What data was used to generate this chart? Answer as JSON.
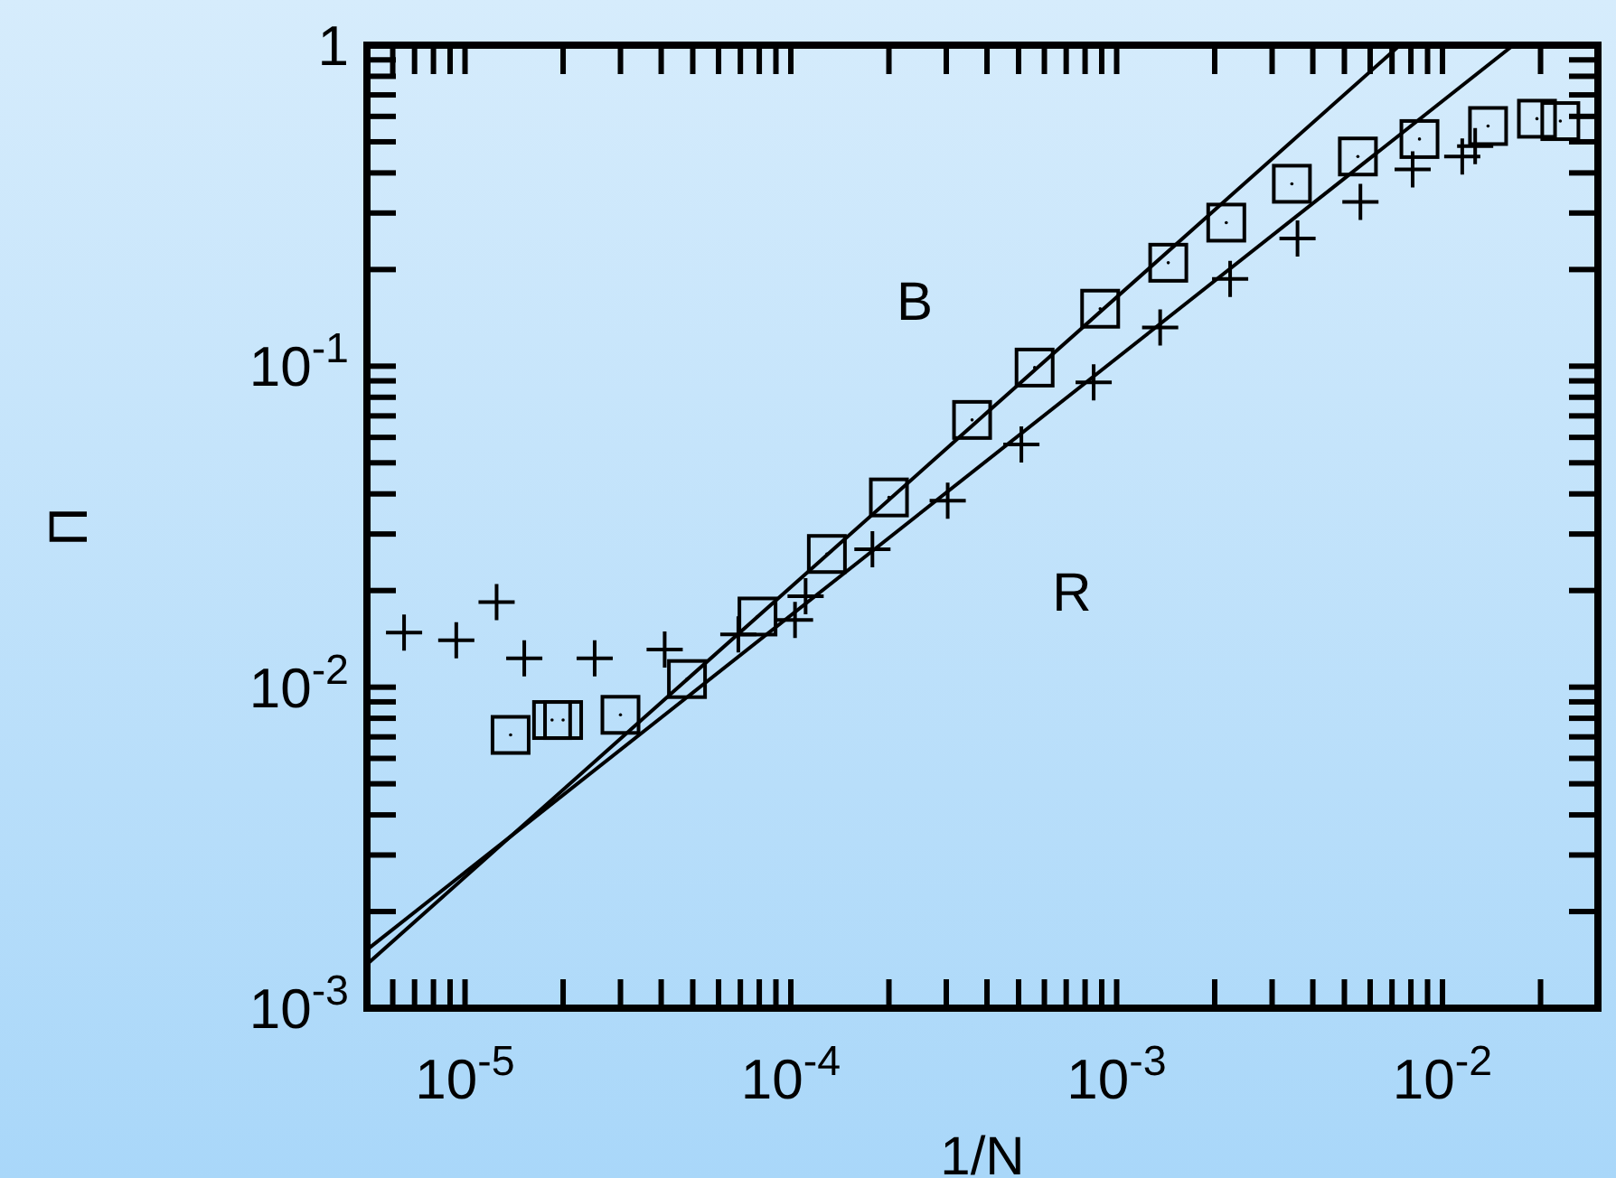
{
  "chart_data": {
    "type": "scatter",
    "xlabel": "1/N",
    "ylabel": "Π",
    "log": "xy",
    "grid": false,
    "xlim": [
      5e-06,
      0.03
    ],
    "ylim": [
      0.001,
      1
    ],
    "xticks": [
      {
        "value": 6e-06,
        "label": null
      },
      {
        "value": 7e-06,
        "label": null
      },
      {
        "value": 8e-06,
        "label": null
      },
      {
        "value": 9e-06,
        "label": null
      },
      {
        "value": 1e-05,
        "label": "10$^{-5}$"
      },
      {
        "value": 2e-05,
        "label": null
      },
      {
        "value": 3e-05,
        "label": null
      },
      {
        "value": 4e-05,
        "label": null
      },
      {
        "value": 5e-05,
        "label": null
      },
      {
        "value": 6e-05,
        "label": null
      },
      {
        "value": 7e-05,
        "label": null
      },
      {
        "value": 8e-05,
        "label": null
      },
      {
        "value": 9e-05,
        "label": null
      },
      {
        "value": 0.0001,
        "label": "10$^{-4}$"
      },
      {
        "value": 0.0002,
        "label": null
      },
      {
        "value": 0.0003,
        "label": null
      },
      {
        "value": 0.0004,
        "label": null
      },
      {
        "value": 0.0005,
        "label": null
      },
      {
        "value": 0.0006,
        "label": null
      },
      {
        "value": 0.0007,
        "label": null
      },
      {
        "value": 0.0008,
        "label": null
      },
      {
        "value": 0.0009,
        "label": null
      },
      {
        "value": 0.001,
        "label": "10$^{-3}$"
      },
      {
        "value": 0.002,
        "label": null
      },
      {
        "value": 0.003,
        "label": null
      },
      {
        "value": 0.004,
        "label": null
      },
      {
        "value": 0.005,
        "label": null
      },
      {
        "value": 0.006,
        "label": null
      },
      {
        "value": 0.007,
        "label": null
      },
      {
        "value": 0.008,
        "label": null
      },
      {
        "value": 0.009,
        "label": null
      },
      {
        "value": 0.01,
        "label": "10$^{-2}$"
      },
      {
        "value": 0.02,
        "label": null
      }
    ],
    "yticks": [
      {
        "value": 0.001,
        "label": "10$^{-3}$"
      },
      {
        "value": 0.002,
        "label": null
      },
      {
        "value": 0.003,
        "label": null
      },
      {
        "value": 0.004,
        "label": null
      },
      {
        "value": 0.005,
        "label": null
      },
      {
        "value": 0.006,
        "label": null
      },
      {
        "value": 0.007,
        "label": null
      },
      {
        "value": 0.008,
        "label": null
      },
      {
        "value": 0.009,
        "label": null
      },
      {
        "value": 0.01,
        "label": "10$^{-2}$"
      },
      {
        "value": 0.02,
        "label": null
      },
      {
        "value": 0.03,
        "label": null
      },
      {
        "value": 0.04,
        "label": null
      },
      {
        "value": 0.05,
        "label": null
      },
      {
        "value": 0.06,
        "label": null
      },
      {
        "value": 0.07,
        "label": null
      },
      {
        "value": 0.08,
        "label": null
      },
      {
        "value": 0.09,
        "label": null
      },
      {
        "value": 0.1,
        "label": "10$^{-1}$"
      },
      {
        "value": 0.2,
        "label": null
      },
      {
        "value": 0.3,
        "label": null
      },
      {
        "value": 0.4,
        "label": null
      },
      {
        "value": 0.5,
        "label": null
      },
      {
        "value": 0.6,
        "label": null
      },
      {
        "value": 0.7,
        "label": null
      },
      {
        "value": 0.8,
        "label": null
      },
      {
        "value": 0.9,
        "label": null
      },
      1
    ],
    "series": [
      {
        "type": "scatter",
        "marker": "square",
        "color": "#000000",
        "x": [
          1.38e-05,
          1.85e-05,
          2e-05,
          3e-05,
          4.8e-05,
          7.9e-05,
          0.000129,
          0.0002,
          0.00036,
          0.00056,
          0.00089,
          0.00144,
          0.00217,
          0.00345,
          0.0055,
          0.0085,
          0.0138,
          0.0195,
          0.023
        ],
        "values": [
          0.0071,
          0.0079,
          0.0079,
          0.0082,
          0.0106,
          0.0166,
          0.026,
          0.039,
          0.068,
          0.099,
          0.151,
          0.21,
          0.28,
          0.37,
          0.45,
          0.51,
          0.56,
          0.59,
          0.58
        ]
      },
      {
        "type": "scatter",
        "marker": "cross",
        "color": "#000000",
        "x": [
          6.5e-06,
          9.4e-06,
          1.25e-05,
          1.52e-05,
          2.5e-05,
          4.1e-05,
          6.9e-05,
          0.000103,
          0.000111,
          0.000178,
          0.000303,
          0.00051,
          0.00085,
          0.00136,
          0.00223,
          0.00359,
          0.0056,
          0.0081,
          0.0115,
          0.0126
        ],
        "values": [
          0.0148,
          0.014,
          0.0184,
          0.0123,
          0.0123,
          0.0131,
          0.0146,
          0.0162,
          0.0192,
          0.0269,
          0.0381,
          0.057,
          0.089,
          0.132,
          0.187,
          0.25,
          0.325,
          0.41,
          0.45,
          0.485
        ]
      },
      {
        "type": "line",
        "marker": "none",
        "line_style": "solid",
        "color": "#000000",
        "x": [
          5e-06,
          0.0074
        ],
        "values": [
          0.00137,
          1
        ]
      },
      {
        "type": "line",
        "marker": "none",
        "line_style": "solid",
        "color": "#000000",
        "x": [
          5e-06,
          0.0165
        ],
        "values": [
          0.00152,
          1
        ]
      }
    ],
    "annotations": [
      "B",
      "R"
    ]
  }
}
